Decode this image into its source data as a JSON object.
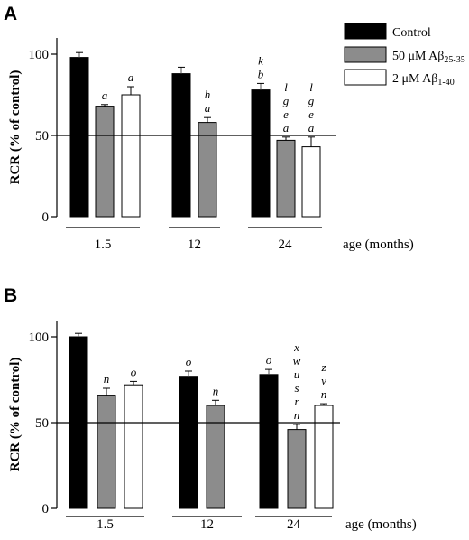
{
  "chart_data": [
    {
      "panel": "A",
      "type": "bar",
      "ylabel": "RCR (% of control)",
      "xlabel": "age (months)",
      "ylim": [
        0,
        100
      ],
      "yticks": [
        "0",
        "50",
        "100"
      ],
      "reference_line": 50,
      "categories": [
        "1.5",
        "12",
        "24"
      ],
      "legend_placement": "top-right",
      "series": [
        {
          "name": "Control",
          "color": "#000000",
          "values": [
            98,
            88,
            78
          ],
          "errors": [
            3,
            4,
            4
          ],
          "labels": [
            [],
            [],
            [
              "k",
              "b"
            ]
          ]
        },
        {
          "name": "50 μM Aβ25-35",
          "color": "#8c8c8c",
          "values": [
            68,
            58,
            47
          ],
          "errors": [
            1,
            3,
            2
          ],
          "labels": [
            [
              "a"
            ],
            [
              "h",
              "a"
            ],
            [
              "l",
              "g",
              "e",
              "a"
            ]
          ]
        },
        {
          "name": "2 μM Aβ1-40",
          "color": "#ffffff",
          "values": [
            75,
            null,
            43
          ],
          "errors": [
            5,
            0,
            6
          ],
          "labels": [
            [
              "a"
            ],
            [],
            [
              "l",
              "g",
              "e",
              "a"
            ]
          ]
        }
      ]
    },
    {
      "panel": "B",
      "type": "bar",
      "ylabel": "RCR (% of control)",
      "xlabel": "age (months)",
      "ylim": [
        0,
        100
      ],
      "yticks": [
        "0",
        "50",
        "100"
      ],
      "reference_line": 50,
      "categories": [
        "1.5",
        "12",
        "24"
      ],
      "series": [
        {
          "name": "Control",
          "color": "#000000",
          "values": [
            100,
            77,
            78
          ],
          "errors": [
            2,
            3,
            3
          ],
          "labels": [
            [],
            [
              "o"
            ],
            [
              "o"
            ]
          ]
        },
        {
          "name": "50 μM Aβ25-35",
          "color": "#8c8c8c",
          "values": [
            66,
            60,
            46
          ],
          "errors": [
            4,
            3,
            3
          ],
          "labels": [
            [
              "n"
            ],
            [
              "n"
            ],
            [
              "x",
              "w",
              "u",
              "s",
              "r",
              "n"
            ]
          ]
        },
        {
          "name": "2 μM Aβ1-40",
          "color": "#ffffff",
          "values": [
            72,
            null,
            60
          ],
          "errors": [
            2,
            0,
            1
          ],
          "labels": [
            [
              "o"
            ],
            [],
            [
              "z",
              "v",
              "n"
            ]
          ]
        }
      ]
    }
  ],
  "legend": {
    "control": "Control",
    "ab2535_prefix": "50 μM Aβ",
    "ab2535_sub": "25-35",
    "ab140_prefix": "2 μM Aβ",
    "ab140_sub": "1-40"
  }
}
